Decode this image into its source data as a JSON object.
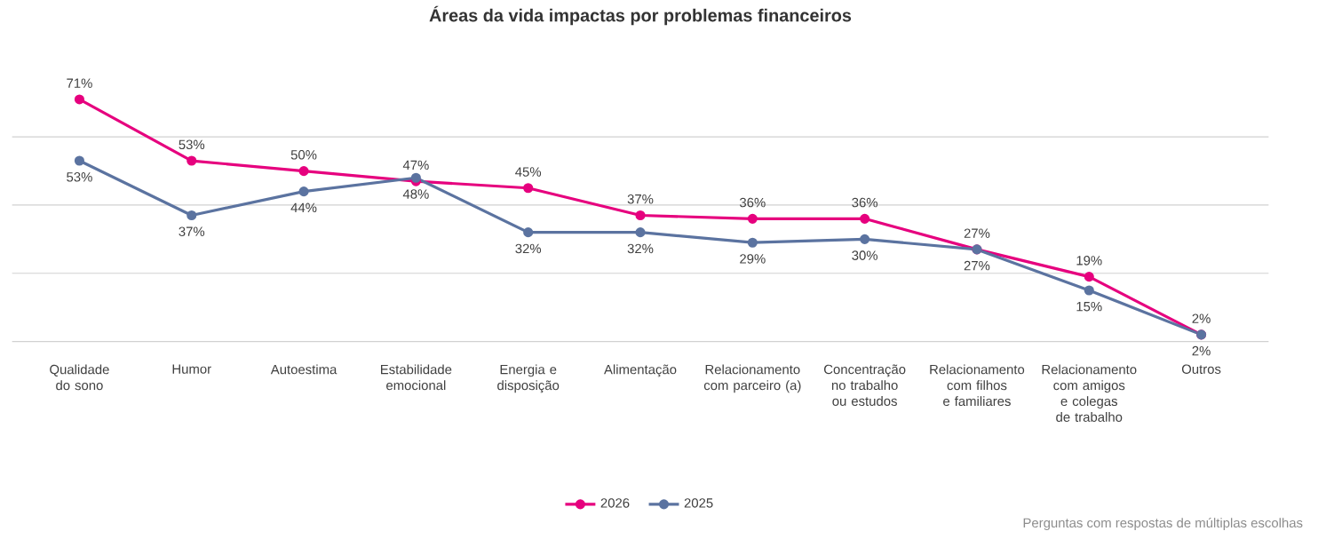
{
  "chart_data": {
    "type": "line",
    "title": "Áreas da vida impactas por problemas financeiros",
    "categories": [
      "Qualidade do sono",
      "Humor",
      "Autoestima",
      "Estabilidade emocional",
      "Energia e disposição",
      "Alimentação",
      "Relacionamento com parceiro (a)",
      "Concentração no trabalho ou estudos",
      "Relacionamento com filhos e familiares",
      "Relacionamento com amigos e colegas de trabalho",
      "Outros"
    ],
    "series": [
      {
        "name": "2026",
        "color": "#e6007e",
        "values": [
          71,
          53,
          50,
          47,
          45,
          37,
          36,
          36,
          27,
          19,
          2
        ],
        "value_labels": [
          "71%",
          "53%",
          "50%",
          "47%",
          "45%",
          "37%",
          "36%",
          "36%",
          "27%",
          "19%",
          "2%"
        ]
      },
      {
        "name": "2025",
        "color": "#5b73a0",
        "values": [
          53,
          37,
          44,
          48,
          32,
          32,
          29,
          30,
          27,
          15,
          2
        ],
        "value_labels": [
          "53%",
          "37%",
          "44%",
          "48%",
          "32%",
          "32%",
          "29%",
          "30%",
          "27%",
          "15%",
          "2%"
        ]
      }
    ],
    "grid": "y",
    "tick_labels": "x",
    "legend": "bottom",
    "marker": "circle",
    "line_style": "solid",
    "annotations": [
      "Perguntas com respostas de múltiplas escolhas"
    ]
  }
}
